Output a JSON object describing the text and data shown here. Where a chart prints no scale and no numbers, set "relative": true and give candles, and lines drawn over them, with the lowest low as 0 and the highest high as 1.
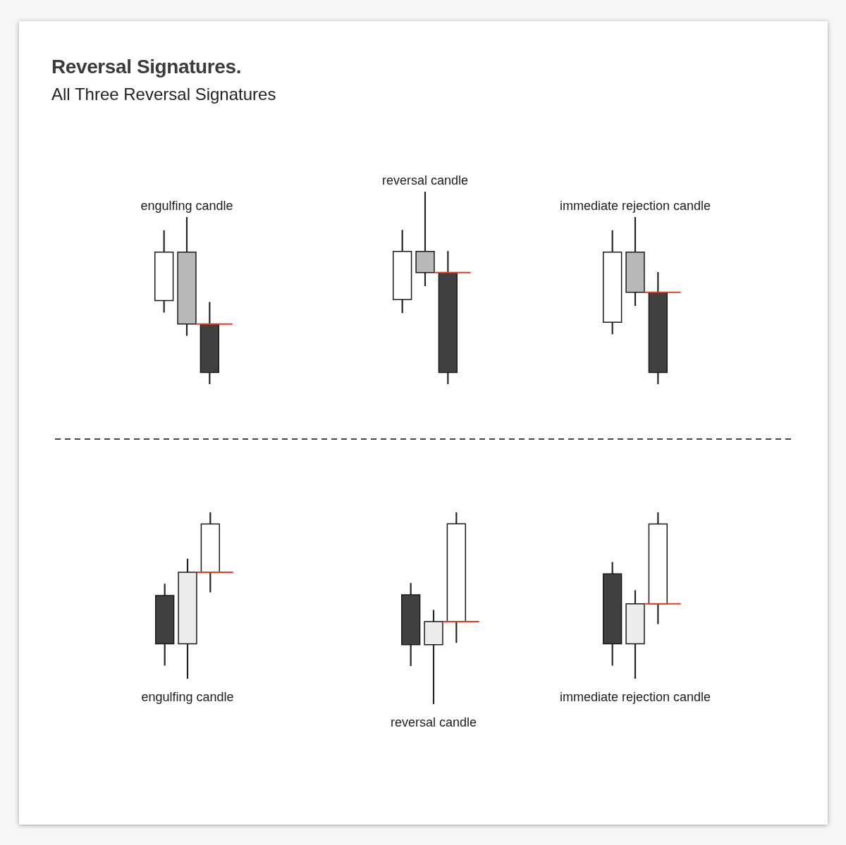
{
  "chart_data": [
    {
      "type": "other",
      "title": "Reversal Signatures.",
      "subtitle": "All Three Reversal Signatures"
    },
    {
      "type": "candlestick",
      "title": "engulfing candle",
      "categories": [
        null,
        null,
        null
      ],
      "relative": true,
      "ohlc": [
        [
          0.5,
          0.92,
          0.43,
          0.79
        ],
        [
          0.79,
          1,
          0.29,
          0.36
        ],
        [
          0.36,
          0.49,
          0,
          0.07
        ]
      ],
      "colors": [
        "#ffffff",
        "#b8b8b8",
        "#404040"
      ],
      "ref_lines": [
        {
          "axis": "y",
          "value": 0.36,
          "color": "#e2401c"
        }
      ]
    },
    {
      "type": "candlestick",
      "title": "reversal candle",
      "categories": [
        null,
        null,
        null
      ],
      "relative": true,
      "ohlc": [
        [
          0.44,
          0.8,
          0.37,
          0.69
        ],
        [
          0.69,
          1,
          0.51,
          0.58
        ],
        [
          0.58,
          0.69,
          0,
          0.06
        ]
      ],
      "colors": [
        "#ffffff",
        "#b8b8b8",
        "#404040"
      ],
      "ref_lines": [
        {
          "axis": "y",
          "value": 0.58,
          "color": "#e2401c"
        }
      ]
    },
    {
      "type": "candlestick",
      "title": "immediate rejection candle",
      "categories": [
        null,
        null,
        null
      ],
      "relative": true,
      "ohlc": [
        [
          0.37,
          0.92,
          0.3,
          0.79
        ],
        [
          0.79,
          1,
          0.47,
          0.55
        ],
        [
          0.55,
          0.67,
          0,
          0.07
        ]
      ],
      "colors": [
        "#ffffff",
        "#b8b8b8",
        "#404040"
      ],
      "ref_lines": [
        {
          "axis": "y",
          "value": 0.55,
          "color": "#e2401c"
        }
      ]
    },
    {
      "type": "candlestick",
      "xlabel": "engulfing candle",
      "categories": [
        null,
        null,
        null
      ],
      "relative": true,
      "ohlc": [
        [
          0.5,
          0.57,
          0.08,
          0.21
        ],
        [
          0.21,
          0.72,
          0,
          0.64
        ],
        [
          0.64,
          1,
          0.52,
          0.93
        ]
      ],
      "colors": [
        "#404040",
        "#ececec",
        "#ffffff"
      ],
      "ref_lines": [
        {
          "axis": "y",
          "value": 0.64,
          "color": "#e2401c"
        }
      ]
    },
    {
      "type": "candlestick",
      "xlabel": "reversal candle",
      "categories": [
        null,
        null,
        null
      ],
      "relative": true,
      "ohlc": [
        [
          0.57,
          0.63,
          0.2,
          0.31
        ],
        [
          0.31,
          0.49,
          0,
          0.43
        ],
        [
          0.43,
          1,
          0.32,
          0.94
        ]
      ],
      "colors": [
        "#404040",
        "#ececec",
        "#ffffff"
      ],
      "ref_lines": [
        {
          "axis": "y",
          "value": 0.43,
          "color": "#e2401c"
        }
      ]
    },
    {
      "type": "candlestick",
      "xlabel": "immediate rejection candle",
      "categories": [
        null,
        null,
        null
      ],
      "relative": true,
      "ohlc": [
        [
          0.63,
          0.7,
          0.08,
          0.21
        ],
        [
          0.21,
          0.53,
          0,
          0.45
        ],
        [
          0.45,
          1,
          0.33,
          0.93
        ]
      ],
      "colors": [
        "#404040",
        "#ececec",
        "#ffffff"
      ],
      "ref_lines": [
        {
          "axis": "y",
          "value": 0.45,
          "color": "#e2401c"
        }
      ]
    }
  ]
}
